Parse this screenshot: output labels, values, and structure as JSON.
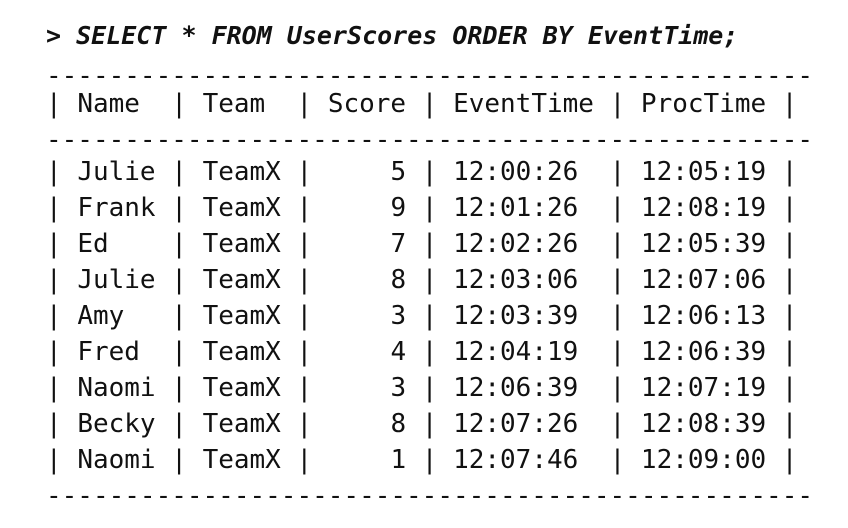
{
  "query": {
    "text": "> SELECT * FROM UserScores ORDER BY EventTime;"
  },
  "separator": "-------------------------------------------------",
  "table": {
    "headers": [
      "Name",
      "Team",
      "Score",
      "EventTime",
      "ProcTime"
    ],
    "rows": [
      [
        "Julie",
        "TeamX",
        "5",
        "12:00:26",
        "12:05:19"
      ],
      [
        "Frank",
        "TeamX",
        "9",
        "12:01:26",
        "12:08:19"
      ],
      [
        "Ed",
        "TeamX",
        "7",
        "12:02:26",
        "12:05:39"
      ],
      [
        "Julie",
        "TeamX",
        "8",
        "12:03:06",
        "12:07:06"
      ],
      [
        "Amy",
        "TeamX",
        "3",
        "12:03:39",
        "12:06:13"
      ],
      [
        "Fred",
        "TeamX",
        "4",
        "12:04:19",
        "12:06:39"
      ],
      [
        "Naomi",
        "TeamX",
        "3",
        "12:06:39",
        "12:07:19"
      ],
      [
        "Becky",
        "TeamX",
        "8",
        "12:07:26",
        "12:08:39"
      ],
      [
        "Naomi",
        "TeamX",
        "1",
        "12:07:46",
        "12:09:00"
      ]
    ]
  }
}
